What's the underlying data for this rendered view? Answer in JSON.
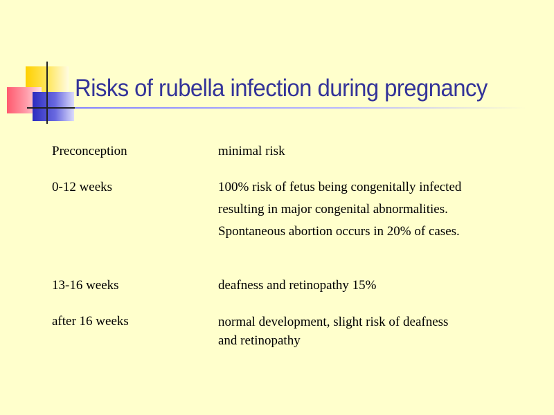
{
  "title": "Risks of rubella infection during pregnancy",
  "rows": [
    {
      "period": "Preconception",
      "risk_lines": [
        "minimal risk"
      ]
    },
    {
      "period": "0-12 weeks",
      "risk_lines": [
        "100% risk of fetus being congenitally infected",
        "resulting in major congenital  abnormalities.",
        "Spontaneous abortion occurs in 20% of cases."
      ]
    },
    {
      "period": "13-16 weeks",
      "risk_lines": [
        "deafness and retinopathy 15%"
      ]
    },
    {
      "period": "after 16 weeks",
      "risk_lines": [
        "normal  development, slight risk of  deafness",
        "and retinopathy"
      ]
    }
  ],
  "colors": {
    "background": "#ffffcc",
    "title": "#333399"
  }
}
